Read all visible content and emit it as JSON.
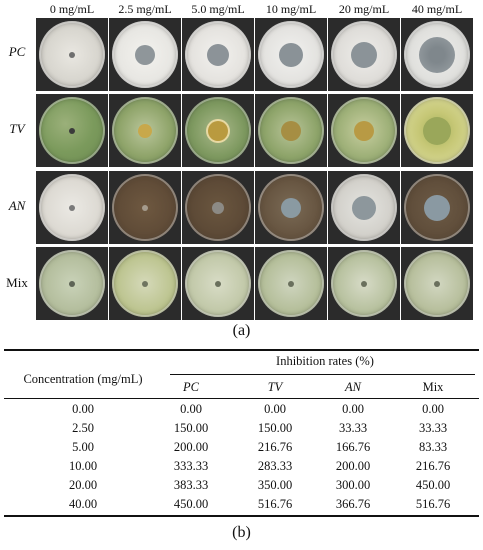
{
  "panel_a": {
    "column_headers": [
      "0 mg/mL",
      "2.5 mg/mL",
      "5.0 mg/mL",
      "10 mg/mL",
      "20 mg/mL",
      "40 mg/mL"
    ],
    "row_labels": [
      "PC",
      "TV",
      "AN",
      "Mix"
    ],
    "label": "(a)"
  },
  "panel_b": {
    "label": "(b)",
    "table": {
      "row_header": "Concentration (mg/mL)",
      "group_header": "Inhibition rates (%)",
      "columns": [
        "PC",
        "TV",
        "AN",
        "Mix"
      ],
      "rows": [
        {
          "concentration": "0.00",
          "values": [
            "0.00",
            "0.00",
            "0.00",
            "0.00"
          ]
        },
        {
          "concentration": "2.50",
          "values": [
            "150.00",
            "150.00",
            "33.33",
            "33.33"
          ]
        },
        {
          "concentration": "5.00",
          "values": [
            "200.00",
            "216.76",
            "166.76",
            "83.33"
          ]
        },
        {
          "concentration": "10.00",
          "values": [
            "333.33",
            "283.33",
            "200.00",
            "216.76"
          ]
        },
        {
          "concentration": "20.00",
          "values": [
            "383.33",
            "350.00",
            "300.00",
            "450.00"
          ]
        },
        {
          "concentration": "40.00",
          "values": [
            "450.00",
            "516.76",
            "366.76",
            "516.76"
          ]
        }
      ]
    }
  }
}
